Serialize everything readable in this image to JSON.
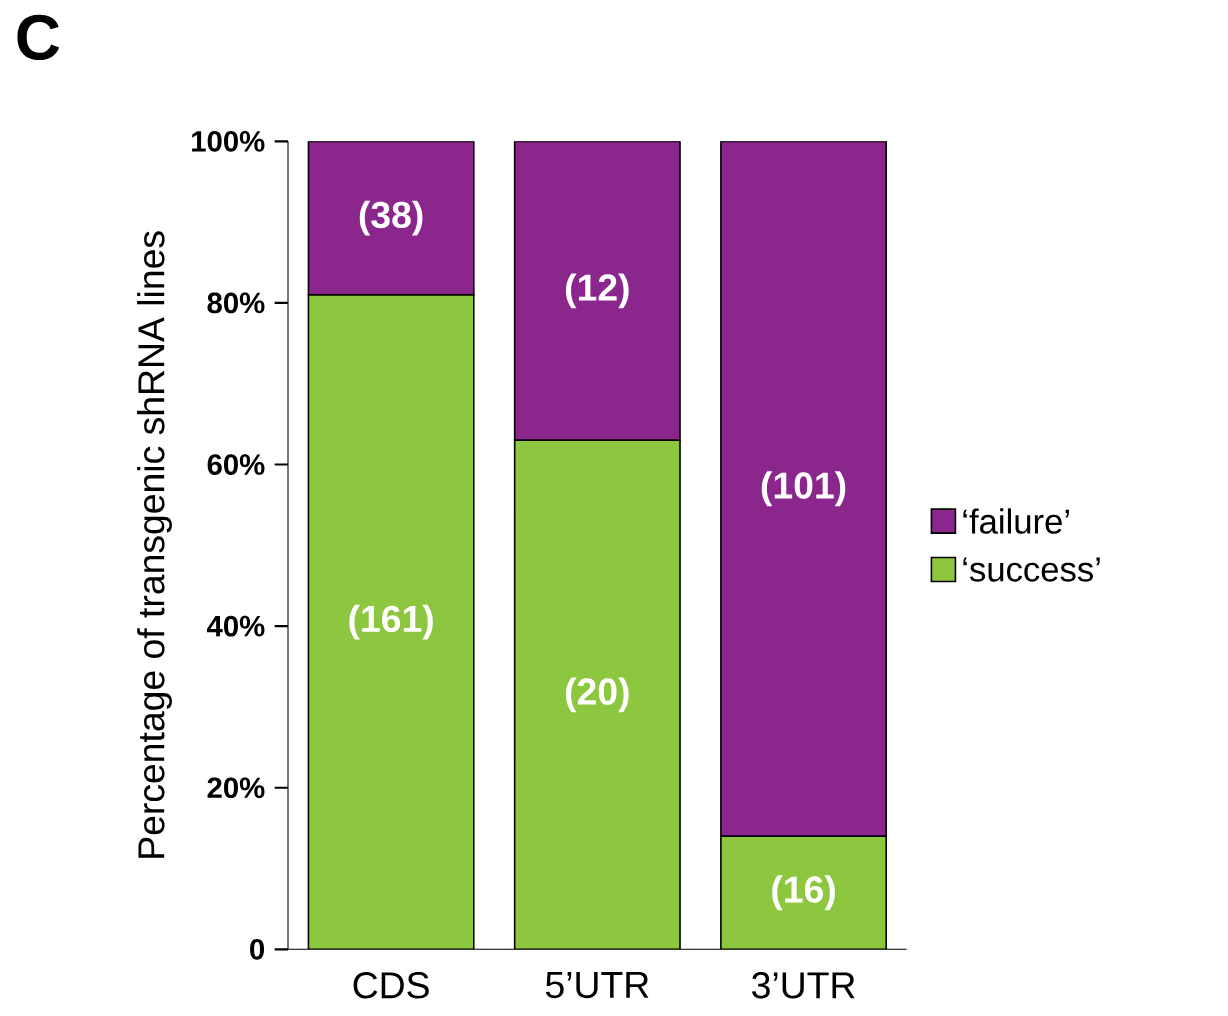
{
  "chart_data": {
    "type": "bar",
    "stacked": true,
    "title": "C",
    "ylabel": "Percentage of transgenic shRNA lines",
    "categories": [
      "CDS",
      "5’UTR",
      "3’UTR"
    ],
    "series": [
      {
        "name": "‘success’",
        "color": "#8dc63f",
        "values": [
          81,
          63,
          14
        ]
      },
      {
        "name": "‘failure’",
        "color": "#8b278c",
        "values": [
          19,
          37,
          86
        ]
      }
    ],
    "annotations": [
      "(161)",
      "(20)",
      "(16)",
      "(38)",
      "(12)",
      "(101)"
    ],
    "ylim": [
      0,
      100
    ],
    "yticks": [
      {
        "value": 0,
        "label": "0"
      },
      {
        "value": 20,
        "label": "20%"
      },
      {
        "value": 40,
        "label": "40%"
      },
      {
        "value": 60,
        "label": "60%"
      },
      {
        "value": 80,
        "label": "80%"
      },
      {
        "value": 100,
        "label": "100%"
      }
    ],
    "legend": "right",
    "grid": false
  }
}
